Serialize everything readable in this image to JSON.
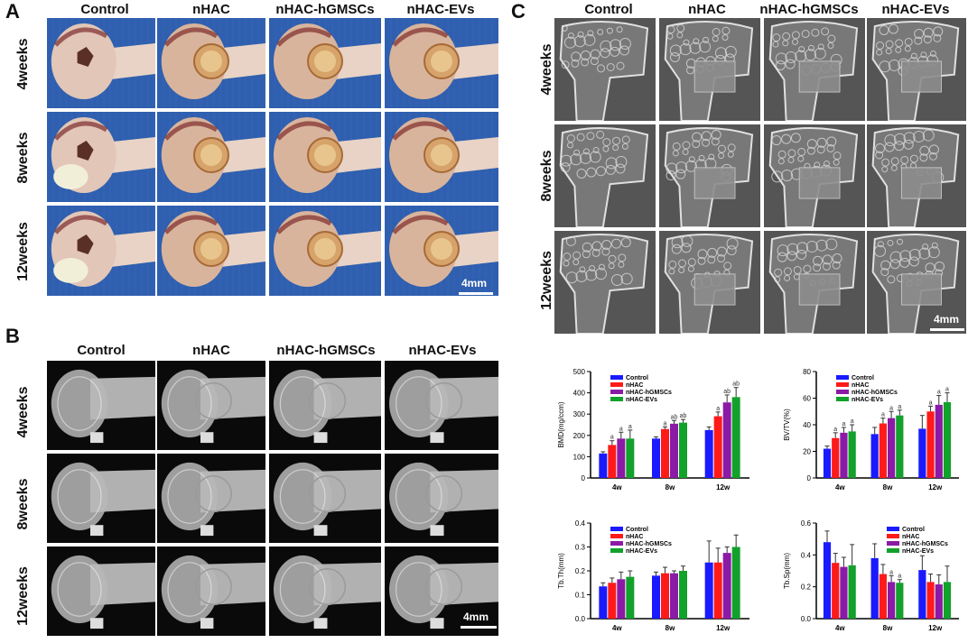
{
  "panels": {
    "A": {
      "letter": "A",
      "columns": [
        "Control",
        "nHAC",
        "nHAC-hGMSCs",
        "nHAC-EVs"
      ],
      "rows": [
        "4weeks",
        "8weeks",
        "12weeks"
      ],
      "scale": "4mm"
    },
    "B": {
      "letter": "B",
      "columns": [
        "Control",
        "nHAC",
        "nHAC-hGMSCs",
        "nHAC-EVs"
      ],
      "rows": [
        "4weeks",
        "8weeks",
        "12weeks"
      ],
      "scale": "4mm"
    },
    "C": {
      "letter": "C",
      "columns": [
        "Control",
        "nHAC",
        "nHAC-hGMSCs",
        "nHAC-EVs"
      ],
      "rows": [
        "4weeks",
        "8weeks",
        "12weeks"
      ],
      "scale": "4mm"
    }
  },
  "colors": {
    "control": "#1a1aff",
    "nhac": "#ff1a1a",
    "hgmscs": "#8b1aa6",
    "evs": "#12a12a",
    "photo_bg": "#2f5fae",
    "xray_bg": "#0a0a0a",
    "ct_bg": "#555555"
  },
  "chart_data": [
    {
      "type": "bar",
      "ylabel": "BMD(mg/ccm)",
      "categories": [
        "4w",
        "8w",
        "12w"
      ],
      "ylim": [
        0,
        500
      ],
      "yticks": [
        0,
        100,
        200,
        300,
        400,
        500
      ],
      "legend_position": "top-left",
      "series": [
        {
          "name": "Control",
          "values": [
            115,
            185,
            225
          ],
          "errors": [
            8,
            8,
            15
          ],
          "sig": [
            "",
            "",
            ""
          ]
        },
        {
          "name": "nHAC",
          "values": [
            155,
            230,
            290
          ],
          "errors": [
            20,
            10,
            20
          ],
          "sig": [
            "a",
            "a",
            "a"
          ]
        },
        {
          "name": "nHAC-hGMSCs",
          "values": [
            185,
            255,
            355
          ],
          "errors": [
            30,
            15,
            35
          ],
          "sig": [
            "a",
            "ab",
            "ab"
          ]
        },
        {
          "name": "nHAC-EVs",
          "values": [
            185,
            260,
            380
          ],
          "errors": [
            40,
            15,
            45
          ],
          "sig": [
            "a",
            "ab",
            "ab"
          ]
        }
      ]
    },
    {
      "type": "bar",
      "ylabel": "BV/TV(%)",
      "categories": [
        "4w",
        "8w",
        "12w"
      ],
      "ylim": [
        0,
        80
      ],
      "yticks": [
        0,
        20,
        40,
        60,
        80
      ],
      "legend_position": "top-left",
      "series": [
        {
          "name": "Control",
          "values": [
            22,
            33,
            37
          ],
          "errors": [
            2,
            5,
            10
          ],
          "sig": [
            "",
            "",
            ""
          ]
        },
        {
          "name": "nHAC",
          "values": [
            30,
            41,
            50
          ],
          "errors": [
            4,
            4,
            4
          ],
          "sig": [
            "a",
            "a",
            "a"
          ]
        },
        {
          "name": "nHAC-hGMSCs",
          "values": [
            34,
            45,
            55
          ],
          "errors": [
            4,
            5,
            7
          ],
          "sig": [
            "a",
            "a",
            "a"
          ]
        },
        {
          "name": "nHAC-EVs",
          "values": [
            35,
            47,
            57
          ],
          "errors": [
            5,
            4,
            7
          ],
          "sig": [
            "a",
            "a",
            "a"
          ]
        }
      ]
    },
    {
      "type": "bar",
      "ylabel": "Tb.Th(mm)",
      "categories": [
        "4w",
        "8w",
        "12w"
      ],
      "ylim": [
        0,
        0.4
      ],
      "yticks": [
        0.0,
        0.1,
        0.2,
        0.3,
        0.4
      ],
      "legend_position": "top-left",
      "series": [
        {
          "name": "Control",
          "values": [
            0.135,
            0.18,
            0.235
          ],
          "errors": [
            0.015,
            0.015,
            0.09
          ],
          "sig": [
            "",
            "",
            ""
          ]
        },
        {
          "name": "nHAC",
          "values": [
            0.15,
            0.19,
            0.235
          ],
          "errors": [
            0.02,
            0.025,
            0.06
          ],
          "sig": [
            "",
            "",
            ""
          ]
        },
        {
          "name": "nHAC-hGMSCs",
          "values": [
            0.165,
            0.19,
            0.275
          ],
          "errors": [
            0.03,
            0.01,
            0.025
          ],
          "sig": [
            "",
            "",
            ""
          ]
        },
        {
          "name": "nHAC-EVs",
          "values": [
            0.175,
            0.2,
            0.3
          ],
          "errors": [
            0.025,
            0.02,
            0.05
          ],
          "sig": [
            "",
            "",
            ""
          ]
        }
      ]
    },
    {
      "type": "bar",
      "ylabel": "Tb.Sp(mm)",
      "categories": [
        "4w",
        "8w",
        "12w"
      ],
      "ylim": [
        0,
        0.6
      ],
      "yticks": [
        0.0,
        0.2,
        0.4,
        0.6
      ],
      "legend_position": "top-right",
      "series": [
        {
          "name": "Control",
          "values": [
            0.48,
            0.38,
            0.305
          ],
          "errors": [
            0.07,
            0.09,
            0.09
          ],
          "sig": [
            "",
            "",
            ""
          ]
        },
        {
          "name": "nHAC",
          "values": [
            0.35,
            0.28,
            0.23
          ],
          "errors": [
            0.06,
            0.06,
            0.05
          ],
          "sig": [
            "",
            "",
            ""
          ]
        },
        {
          "name": "nHAC-hGMSCs",
          "values": [
            0.325,
            0.23,
            0.215
          ],
          "errors": [
            0.06,
            0.04,
            0.06
          ],
          "sig": [
            "",
            "a",
            ""
          ]
        },
        {
          "name": "nHAC-EVs",
          "values": [
            0.335,
            0.225,
            0.23
          ],
          "errors": [
            0.13,
            0.02,
            0.1
          ],
          "sig": [
            "",
            "a",
            ""
          ]
        }
      ]
    }
  ]
}
